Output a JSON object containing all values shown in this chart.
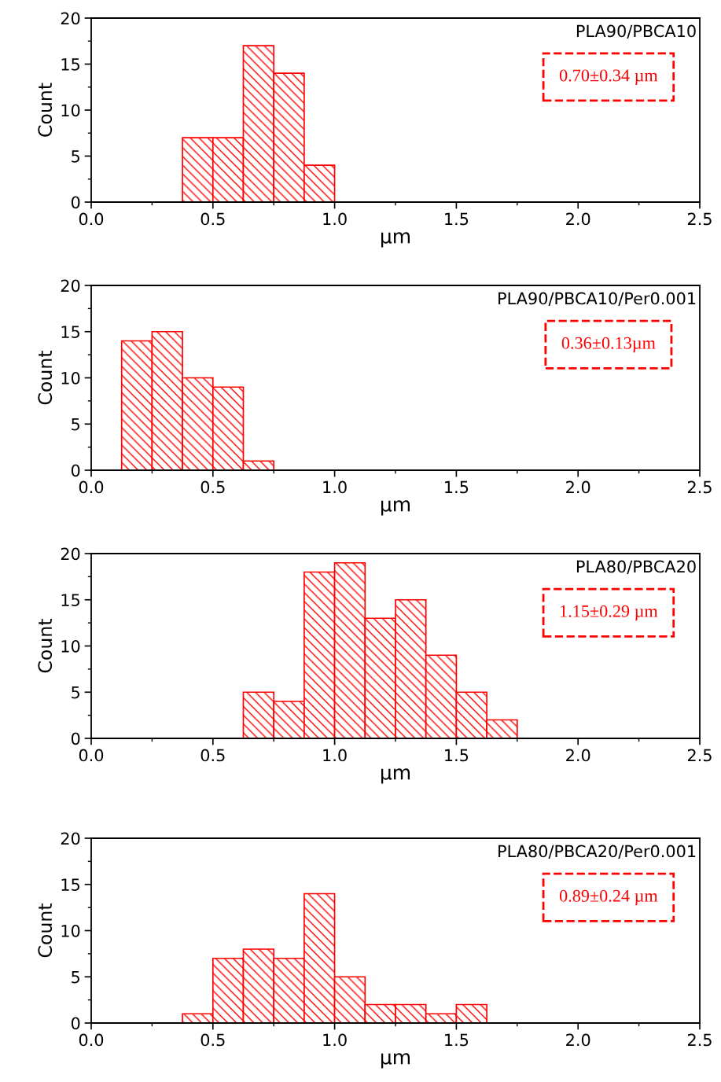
{
  "chart_data": [
    {
      "type": "histogram",
      "xlabel": "µm",
      "ylabel": "Count",
      "color": "#ff0000",
      "bins": [
        0.375,
        0.5,
        0.625,
        0.75,
        0.875,
        1.0
      ],
      "values": [
        7,
        7,
        17,
        14,
        4
      ],
      "xlim": [
        0,
        2.5
      ],
      "xticks": [
        {
          "value": 0,
          "label": "0.0"
        },
        {
          "value": 0.5,
          "label": "0.5"
        },
        {
          "value": 1,
          "label": "1.0"
        },
        {
          "value": 1.5,
          "label": "1.5"
        },
        {
          "value": 2,
          "label": "2.0"
        },
        {
          "value": 2.5,
          "label": "2.5"
        }
      ],
      "ylim": [
        0,
        20
      ],
      "yticks": [
        0,
        5,
        10,
        15,
        20
      ],
      "annotations": [
        "PLA90/PBCA10",
        "0.70±0.34 µm"
      ]
    },
    {
      "type": "histogram",
      "xlabel": "µm",
      "ylabel": "Count",
      "color": "#ff0000",
      "bins": [
        0.125,
        0.25,
        0.375,
        0.5,
        0.625,
        0.75
      ],
      "values": [
        14,
        15,
        10,
        9,
        1
      ],
      "xlim": [
        0,
        2.5
      ],
      "xticks": [
        {
          "value": 0,
          "label": "0.0"
        },
        {
          "value": 0.5,
          "label": "0.5"
        },
        {
          "value": 1,
          "label": "1.0"
        },
        {
          "value": 1.5,
          "label": "1.5"
        },
        {
          "value": 2,
          "label": "2.0"
        },
        {
          "value": 2.5,
          "label": "2.5"
        }
      ],
      "ylim": [
        0,
        20
      ],
      "yticks": [
        0,
        5,
        10,
        15,
        20
      ],
      "annotations": [
        "PLA90/PBCA10/Per0.001",
        "0.36±0.13µm"
      ]
    },
    {
      "type": "histogram",
      "xlabel": "µm",
      "ylabel": "Count",
      "color": "#ff0000",
      "bins": [
        0.625,
        0.75,
        0.875,
        1.0,
        1.125,
        1.25,
        1.375,
        1.5,
        1.625,
        1.75
      ],
      "values": [
        5,
        4,
        18,
        19,
        13,
        15,
        9,
        5,
        2
      ],
      "xlim": [
        0,
        2.5
      ],
      "xticks": [
        {
          "value": 0,
          "label": "0.0"
        },
        {
          "value": 0.5,
          "label": "0.5"
        },
        {
          "value": 1,
          "label": "1.0"
        },
        {
          "value": 1.5,
          "label": "1.5"
        },
        {
          "value": 2,
          "label": "2.0"
        },
        {
          "value": 2.5,
          "label": "2.5"
        }
      ],
      "ylim": [
        0,
        20
      ],
      "yticks": [
        0,
        5,
        10,
        15,
        20
      ],
      "annotations": [
        "PLA80/PBCA20",
        "1.15±0.29 µm"
      ]
    },
    {
      "type": "histogram",
      "xlabel": "µm",
      "ylabel": "Count",
      "color": "#ff0000",
      "bins": [
        0.375,
        0.5,
        0.625,
        0.75,
        0.875,
        1.0,
        1.125,
        1.25,
        1.375,
        1.5,
        1.625
      ],
      "values": [
        1,
        7,
        8,
        7,
        14,
        5,
        2,
        2,
        1,
        2
      ],
      "xlim": [
        0,
        2.5
      ],
      "xticks": [
        {
          "value": 0,
          "label": "0.0"
        },
        {
          "value": 0.5,
          "label": "0.5"
        },
        {
          "value": 1,
          "label": "1.0"
        },
        {
          "value": 1.5,
          "label": "1.5"
        },
        {
          "value": 2,
          "label": "2.0"
        },
        {
          "value": 2.5,
          "label": "2.5"
        }
      ],
      "ylim": [
        0,
        20
      ],
      "yticks": [
        0,
        5,
        10,
        15,
        20
      ],
      "annotations": [
        "PLA80/PBCA20/Per0.001",
        "0.89±0.24 µm"
      ]
    }
  ]
}
